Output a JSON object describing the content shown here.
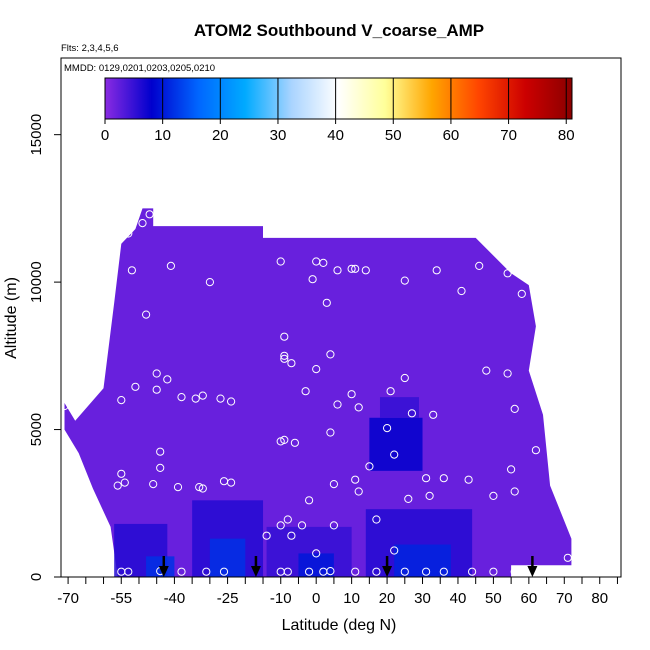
{
  "chart_data": {
    "type": "heatmap",
    "title": "ATOM2 Southbound V_coarse_AMP",
    "subtitle_flights": "Flts: 2,3,4,5,6",
    "subtitle_dates": "MMDD: 0129,0201,0203,0205,0210",
    "xlabel": "Latitude (deg N)",
    "ylabel": "Altitude (m)",
    "xlim": [
      -72,
      86
    ],
    "ylim": [
      0,
      17600
    ],
    "x_ticks": [
      -70,
      -55,
      -40,
      -25,
      -10,
      0,
      10,
      20,
      30,
      40,
      50,
      60,
      70,
      80
    ],
    "x_tick_labels": [
      "-70",
      "-55",
      "-40",
      "-25",
      "-10",
      "0",
      "10",
      "20",
      "30",
      "40",
      "50",
      "60",
      "70",
      "80"
    ],
    "x_minor_ticks": [
      -65,
      -60,
      -50,
      -45,
      -35,
      -30,
      -20,
      -15,
      -5,
      5,
      15,
      25,
      35,
      45,
      55,
      65,
      75,
      85
    ],
    "y_ticks": [
      0,
      5000,
      10000,
      15000
    ],
    "y_tick_labels": [
      "0",
      "5000",
      "10000",
      "15000"
    ],
    "colorbar": {
      "range": [
        0,
        81
      ],
      "ticks": [
        0,
        10,
        20,
        30,
        40,
        50,
        60,
        70,
        80
      ],
      "tick_labels": [
        "0",
        "10",
        "20",
        "30",
        "40",
        "50",
        "60",
        "70",
        "80"
      ],
      "colors": [
        "#8a2be2",
        "#0000cd",
        "#0066ff",
        "#00aaff",
        "#aad4ff",
        "#ffffff",
        "#ffff99",
        "#ffa500",
        "#ff4500",
        "#cc0000",
        "#8b0000"
      ]
    },
    "field": {
      "background_value": 2,
      "outline": [
        [
          -71,
          5900
        ],
        [
          -68,
          5300
        ],
        [
          -60,
          6400
        ],
        [
          -57,
          9300
        ],
        [
          -55,
          11300
        ],
        [
          -51,
          11800
        ],
        [
          -49,
          12500
        ],
        [
          -46,
          12500
        ],
        [
          -46,
          11900
        ],
        [
          -15,
          11900
        ],
        [
          -15,
          11500
        ],
        [
          45,
          11500
        ],
        [
          55,
          10300
        ],
        [
          60,
          9900
        ],
        [
          62,
          8500
        ],
        [
          60,
          7000
        ],
        [
          64,
          5500
        ],
        [
          66,
          3100
        ],
        [
          70,
          1900
        ],
        [
          72,
          1300
        ],
        [
          72,
          400
        ],
        [
          55,
          400
        ],
        [
          55,
          0
        ],
        [
          -56,
          0
        ],
        [
          -58,
          1700
        ],
        [
          -63,
          3000
        ],
        [
          -67,
          4200
        ],
        [
          -71,
          5000
        ]
      ],
      "patches": [
        {
          "lat": [
            15,
            30
          ],
          "alt": [
            3600,
            5400
          ],
          "value": 8
        },
        {
          "lat": [
            18,
            29
          ],
          "alt": [
            5400,
            6100
          ],
          "value": 5
        },
        {
          "lat": [
            -57,
            -42
          ],
          "alt": [
            0,
            1800
          ],
          "value": 6
        },
        {
          "lat": [
            -48,
            -40
          ],
          "alt": [
            0,
            700
          ],
          "value": 12
        },
        {
          "lat": [
            -35,
            -15
          ],
          "alt": [
            0,
            2600
          ],
          "value": 6
        },
        {
          "lat": [
            -30,
            -20
          ],
          "alt": [
            0,
            1300
          ],
          "value": 12
        },
        {
          "lat": [
            -14,
            10
          ],
          "alt": [
            0,
            1700
          ],
          "value": 5
        },
        {
          "lat": [
            -5,
            5
          ],
          "alt": [
            0,
            800
          ],
          "value": 10
        },
        {
          "lat": [
            14,
            44
          ],
          "alt": [
            0,
            2300
          ],
          "value": 6
        },
        {
          "lat": [
            22,
            38
          ],
          "alt": [
            0,
            1100
          ],
          "value": 11
        }
      ]
    },
    "sample_points": [
      [
        -47,
        12300
      ],
      [
        -49,
        12000
      ],
      [
        -53,
        11650
      ],
      [
        -52,
        10400
      ],
      [
        -41,
        10550
      ],
      [
        -30,
        10000
      ],
      [
        -10,
        10700
      ],
      [
        0,
        10700
      ],
      [
        2,
        10650
      ],
      [
        -1,
        10100
      ],
      [
        3,
        9300
      ],
      [
        6,
        10400
      ],
      [
        11,
        10450
      ],
      [
        10,
        10450
      ],
      [
        14,
        10400
      ],
      [
        25,
        10050
      ],
      [
        34,
        10400
      ],
      [
        41,
        9700
      ],
      [
        46,
        10550
      ],
      [
        54,
        10300
      ],
      [
        58,
        9600
      ],
      [
        -48,
        8900
      ],
      [
        -9,
        8150
      ],
      [
        -9,
        7500
      ],
      [
        -9,
        7400
      ],
      [
        -7,
        7250
      ],
      [
        4,
        7550
      ],
      [
        0,
        7050
      ],
      [
        25,
        6750
      ],
      [
        48,
        7000
      ],
      [
        54,
        6900
      ],
      [
        -45,
        6900
      ],
      [
        -42,
        6700
      ],
      [
        -51,
        6450
      ],
      [
        -45,
        6350
      ],
      [
        -38,
        6100
      ],
      [
        -34,
        6050
      ],
      [
        -32,
        6150
      ],
      [
        -27,
        6050
      ],
      [
        -24,
        5950
      ],
      [
        -3,
        6300
      ],
      [
        10,
        6200
      ],
      [
        6,
        5850
      ],
      [
        12,
        5750
      ],
      [
        21,
        6300
      ],
      [
        27,
        5550
      ],
      [
        33,
        5500
      ],
      [
        56,
        5700
      ],
      [
        -55,
        6000
      ],
      [
        -71,
        5800
      ],
      [
        4,
        4900
      ],
      [
        20,
        5050
      ],
      [
        -10,
        4600
      ],
      [
        -9,
        4650
      ],
      [
        -6,
        4550
      ],
      [
        -44,
        4250
      ],
      [
        22,
        4150
      ],
      [
        62,
        4300
      ],
      [
        -44,
        3700
      ],
      [
        -55,
        3500
      ],
      [
        -54,
        3200
      ],
      [
        -56,
        3100
      ],
      [
        -46,
        3150
      ],
      [
        -39,
        3050
      ],
      [
        -33,
        3050
      ],
      [
        -32,
        3000
      ],
      [
        -26,
        3250
      ],
      [
        -24,
        3200
      ],
      [
        5,
        3150
      ],
      [
        11,
        3300
      ],
      [
        15,
        3750
      ],
      [
        31,
        3350
      ],
      [
        36,
        3350
      ],
      [
        43,
        3300
      ],
      [
        55,
        3650
      ],
      [
        56,
        2900
      ],
      [
        12,
        2900
      ],
      [
        26,
        2650
      ],
      [
        32,
        2750
      ],
      [
        50,
        2750
      ],
      [
        -2,
        2600
      ],
      [
        -10,
        1750
      ],
      [
        -8,
        1950
      ],
      [
        -4,
        1750
      ],
      [
        5,
        1750
      ],
      [
        17,
        1950
      ],
      [
        -14,
        1400
      ],
      [
        -7,
        1400
      ],
      [
        0,
        800
      ],
      [
        22,
        900
      ],
      [
        71,
        650
      ],
      [
        -55,
        180
      ],
      [
        -53,
        180
      ],
      [
        -44,
        200
      ],
      [
        -38,
        180
      ],
      [
        -31,
        180
      ],
      [
        -26,
        180
      ],
      [
        -10,
        180
      ],
      [
        -8,
        180
      ],
      [
        -2,
        180
      ],
      [
        2,
        180
      ],
      [
        4,
        200
      ],
      [
        11,
        180
      ],
      [
        17,
        180
      ],
      [
        25,
        180
      ],
      [
        31,
        180
      ],
      [
        36,
        180
      ],
      [
        44,
        180
      ],
      [
        50,
        180
      ],
      [
        56,
        180
      ]
    ],
    "flight_markers": [
      -43,
      -17,
      20,
      61
    ]
  }
}
